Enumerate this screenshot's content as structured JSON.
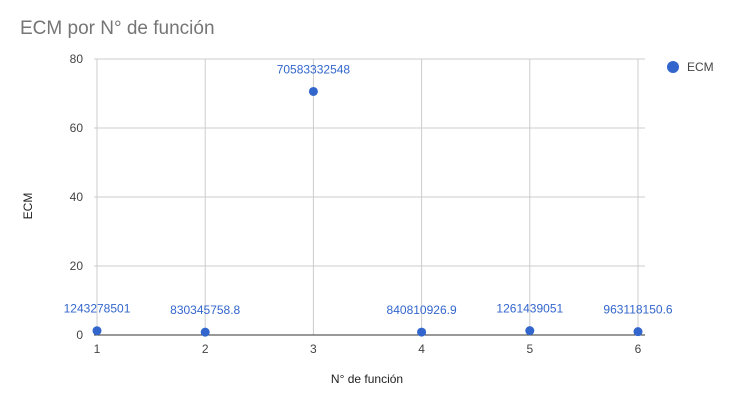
{
  "chart_data": {
    "type": "scatter",
    "title": "ECM por N° de función",
    "xlabel": "N° de función",
    "ylabel": "ECM",
    "x": [
      1,
      2,
      3,
      4,
      5,
      6
    ],
    "xlim": [
      1,
      6
    ],
    "ylim": [
      0,
      80
    ],
    "x_ticks": [
      "1",
      "2",
      "3",
      "4",
      "5",
      "6"
    ],
    "y_ticks": [
      "0",
      "20",
      "40",
      "60",
      "80"
    ],
    "grid": true,
    "legend_position": "top-right",
    "series": [
      {
        "name": "ECM",
        "color": "#3366cc",
        "values": [
          1.243278501,
          0.8303457588,
          70.583332548,
          0.8408109269,
          1.261439051,
          0.9631181506
        ],
        "data_labels": [
          "1243278501",
          "830345758.8",
          "70583332548",
          "840810926.9",
          "1261439051",
          "963118150.6"
        ]
      }
    ]
  }
}
